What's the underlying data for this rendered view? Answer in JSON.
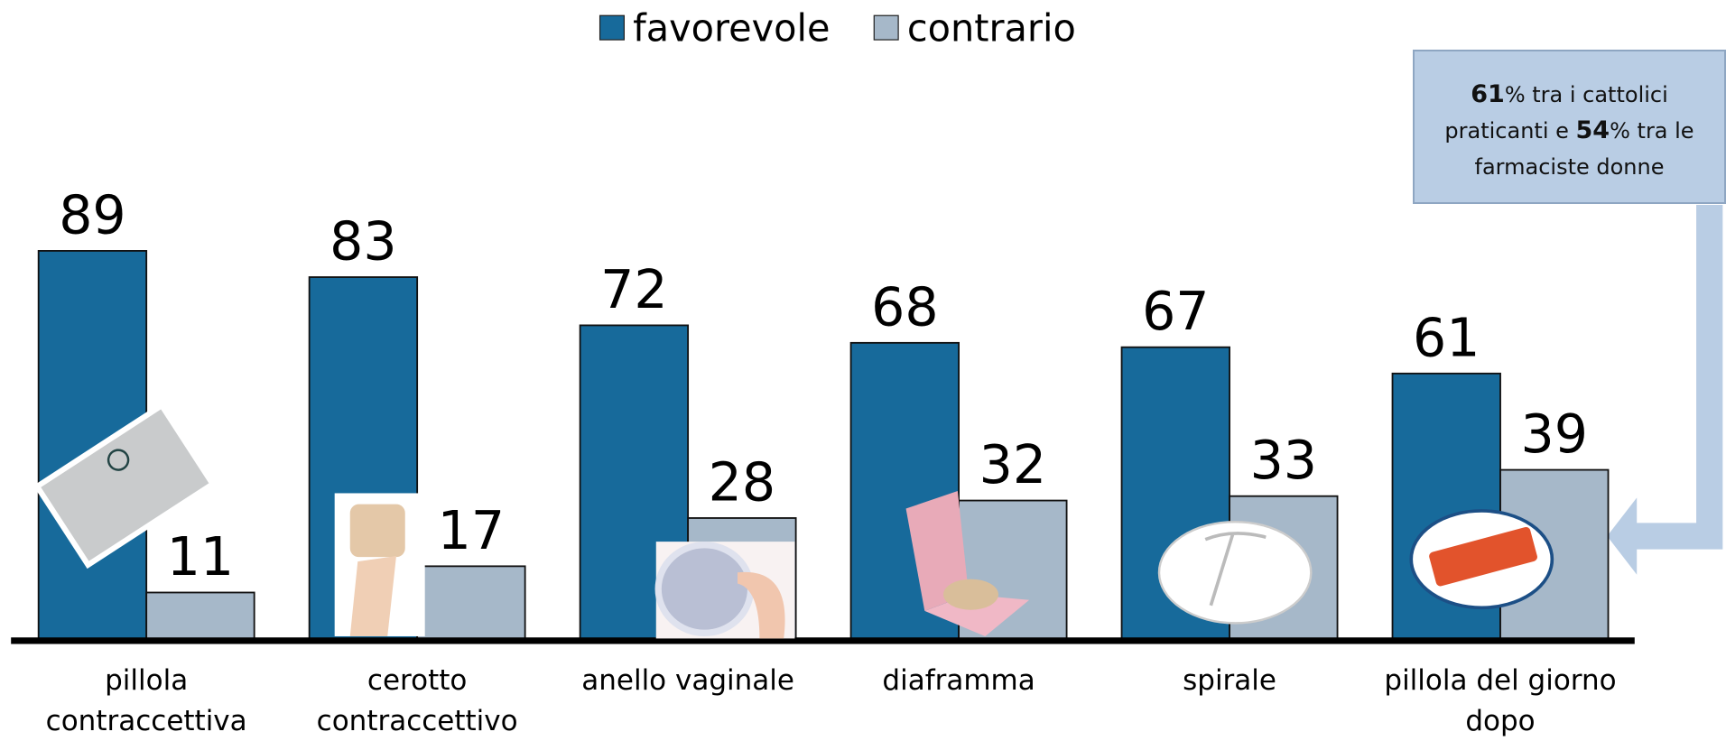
{
  "chart_data": {
    "type": "bar",
    "categories": [
      "pillola contraccettiva",
      "cerotto contraccettivo",
      "anello vaginale",
      "diaframma",
      "spirale",
      "pillola del giorno dopo"
    ],
    "series": [
      {
        "name": "favorevole",
        "color": "#176a9b",
        "values": [
          89,
          83,
          72,
          68,
          67,
          61
        ]
      },
      {
        "name": "contrario",
        "color": "#a6b8c9",
        "values": [
          11,
          17,
          28,
          32,
          33,
          39
        ]
      }
    ],
    "ylim": [
      0,
      100
    ],
    "annotation": [
      {
        "text": "61",
        "bold": true
      },
      {
        "text": "% tra i cattolici praticanti e ",
        "bold": false
      },
      {
        "text": "54",
        "bold": true
      },
      {
        "text": "% tra le farmaciste donne",
        "bold": false
      }
    ]
  }
}
